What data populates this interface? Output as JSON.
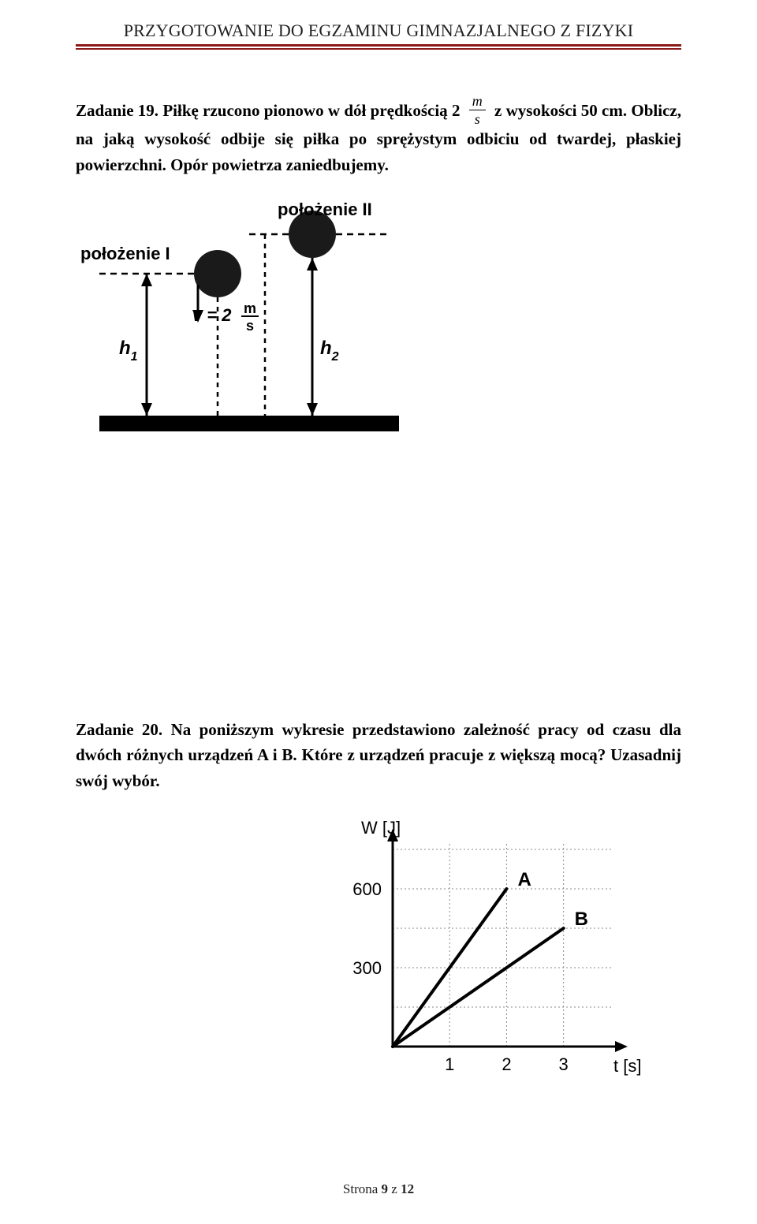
{
  "header": {
    "title": "PRZYGOTOWANIE DO EGZAMINU GIMNAZJALNEGO Z FIZYKI",
    "rule_color": "#8d1919"
  },
  "task19": {
    "label": "Zadanie 19.",
    "text_before_frac": " Piłkę rzucono pionowo w dół prędkością 2 ",
    "frac_num": "m",
    "frac_den": "s",
    "text_after_frac": " z wysokości 50 cm. Oblicz, na jaką wysokość odbije się piłka po sprężystym odbiciu od twardej, płaskiej powierzchni. Opór powietrza zaniedbujemy."
  },
  "figure1": {
    "labels": {
      "pos1": "położenie I",
      "pos2": "położenie II",
      "h1": "h",
      "h1_sub": "1",
      "h2": "h",
      "h2_sub": "2",
      "v_eq": "v = 2",
      "v_unit_num": "m",
      "v_unit_den": "s"
    },
    "colors": {
      "stroke": "#000000",
      "ground": "#000000",
      "ball_fill": "#1a1a1a"
    }
  },
  "task20": {
    "label": "Zadanie 20.",
    "text": " Na poniższym wykresie przedstawiono zależność pracy od czasu dla dwóch różnych urządzeń A i B. Które z urządzeń pracuje z większą mocą? Uzasadnij swój wybór."
  },
  "chart": {
    "type": "line",
    "xlabel": "t [s]",
    "ylabel": "W [J]",
    "xlim": [
      0,
      3.6
    ],
    "ylim": [
      0,
      750
    ],
    "xticks": [
      1,
      2,
      3
    ],
    "xtick_labels": [
      "1",
      "2",
      "3"
    ],
    "yticks": [
      300,
      600
    ],
    "ytick_labels": [
      "300",
      "600"
    ],
    "grid_color": "#8a8a8a",
    "axis_color": "#000000",
    "background_color": "#ffffff",
    "series": [
      {
        "name": "A",
        "points": [
          [
            0,
            0
          ],
          [
            2,
            600
          ]
        ],
        "color": "#000000",
        "width": 4
      },
      {
        "name": "B",
        "points": [
          [
            0,
            0
          ],
          [
            3,
            450
          ]
        ],
        "color": "#000000",
        "width": 4
      }
    ],
    "label_fontsize": 22,
    "tick_fontsize": 22
  },
  "footer": {
    "text": "Strona 9 z 12"
  }
}
